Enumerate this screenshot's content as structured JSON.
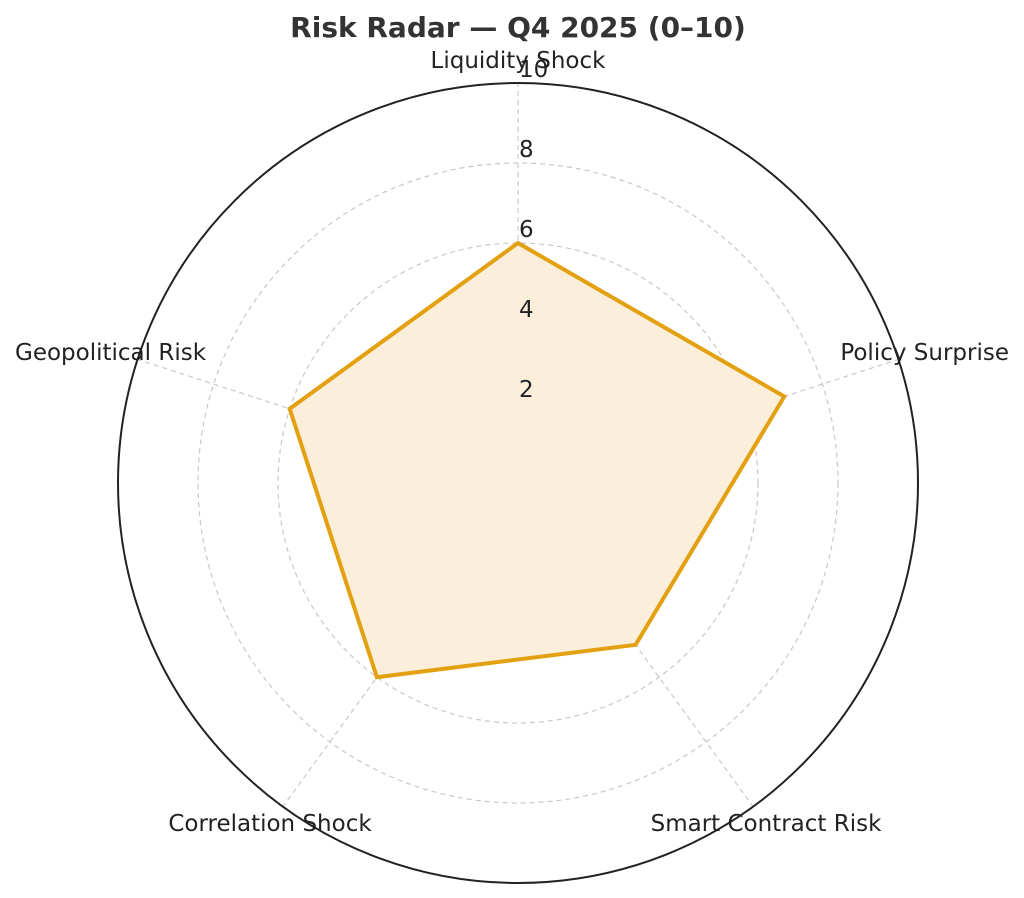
{
  "chart_data": {
    "type": "radar",
    "title": "Risk Radar — Q4 2025 (0–10)",
    "categories": [
      "Liquidity Shock",
      "Policy Surprise",
      "Smart Contract Risk",
      "Correlation Shock",
      "Geopolitical Risk"
    ],
    "series": [
      {
        "values": [
          6,
          7,
          5,
          6,
          6
        ],
        "color": "#e3a010",
        "fill": "#fbefdb"
      }
    ],
    "rlim": [
      0,
      10
    ],
    "rticks": [
      2,
      4,
      6,
      8,
      10
    ],
    "grid": true,
    "legend": false
  }
}
